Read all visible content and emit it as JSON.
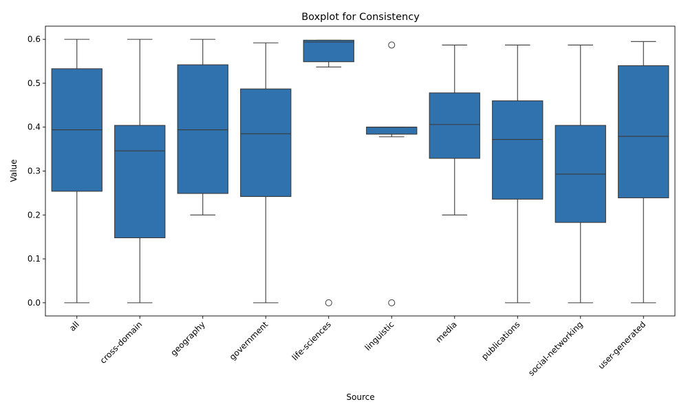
{
  "chart_data": {
    "type": "boxplot",
    "title": "Boxplot for Consistency",
    "xlabel": "Source",
    "ylabel": "Value",
    "ylim": [
      -0.03,
      0.63
    ],
    "yticks": [
      "0.0",
      "0.1",
      "0.2",
      "0.3",
      "0.4",
      "0.5",
      "0.6"
    ],
    "grid": false,
    "box_color": "#2f72ad",
    "line_color": "#3a3a3a",
    "categories": [
      "all",
      "cross-domain",
      "geography",
      "government",
      "life-sciences",
      "linguistic",
      "media",
      "publications",
      "social-networking",
      "user-generated"
    ],
    "boxes": [
      {
        "category": "all",
        "whislo": 0.0,
        "q1": 0.254,
        "med": 0.394,
        "q3": 0.533,
        "whishi": 0.6,
        "fliers": []
      },
      {
        "category": "cross-domain",
        "whislo": 0.0,
        "q1": 0.148,
        "med": 0.346,
        "q3": 0.404,
        "whishi": 0.6,
        "fliers": []
      },
      {
        "category": "geography",
        "whislo": 0.2,
        "q1": 0.249,
        "med": 0.394,
        "q3": 0.542,
        "whishi": 0.6,
        "fliers": []
      },
      {
        "category": "government",
        "whislo": 0.0,
        "q1": 0.242,
        "med": 0.385,
        "q3": 0.487,
        "whishi": 0.592,
        "fliers": []
      },
      {
        "category": "life-sciences",
        "whislo": 0.537,
        "q1": 0.549,
        "med": 0.594,
        "q3": 0.598,
        "whishi": 0.598,
        "fliers": [
          0.0
        ]
      },
      {
        "category": "linguistic",
        "whislo": 0.378,
        "q1": 0.384,
        "med": 0.4,
        "q3": 0.4,
        "whishi": 0.4,
        "fliers": [
          0.587,
          0.0
        ]
      },
      {
        "category": "media",
        "whislo": 0.2,
        "q1": 0.329,
        "med": 0.406,
        "q3": 0.478,
        "whishi": 0.587,
        "fliers": []
      },
      {
        "category": "publications",
        "whislo": 0.0,
        "q1": 0.236,
        "med": 0.372,
        "q3": 0.46,
        "whishi": 0.587,
        "fliers": []
      },
      {
        "category": "social-networking",
        "whislo": 0.0,
        "q1": 0.183,
        "med": 0.293,
        "q3": 0.404,
        "whishi": 0.587,
        "fliers": []
      },
      {
        "category": "user-generated",
        "whislo": 0.0,
        "q1": 0.239,
        "med": 0.379,
        "q3": 0.54,
        "whishi": 0.595,
        "fliers": []
      }
    ]
  }
}
